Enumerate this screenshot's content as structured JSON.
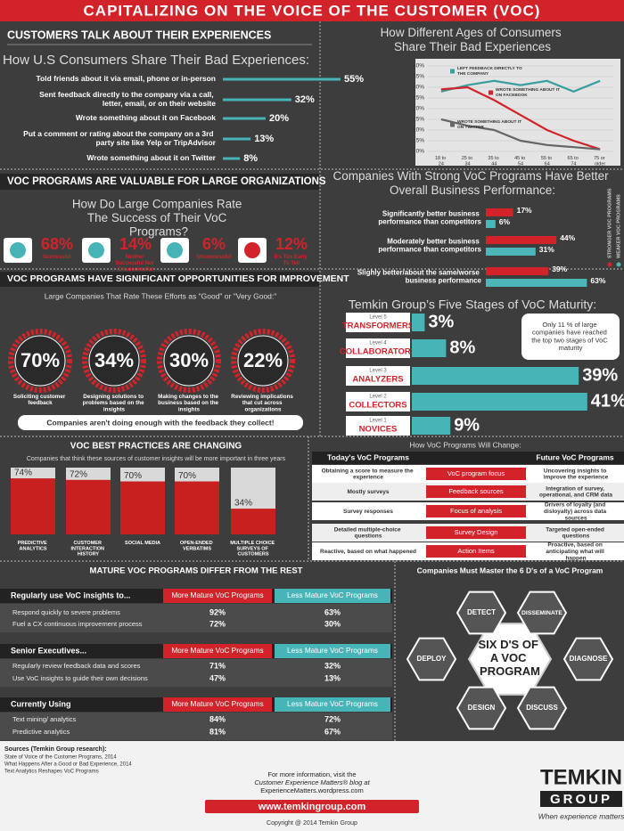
{
  "title": "CAPITALIZING ON THE VOICE OF THE CUSTOMER (VOC)",
  "chart_data": [
    {
      "type": "hbar",
      "heading": "CUSTOMERS TALK ABOUT THEIR EXPERIENCES",
      "title": "How U.S Consumers Share Their Bad Experiences:",
      "categories": [
        "Told friends about it via email, phone or in-person",
        "Sent feedback directly to the company via a call, letter, email, or on their website",
        "Wrote something about it on Facebook",
        "Put a comment or rating about the company on a 3rd party site like Yelp or TripAdvisor",
        "Wrote something about it on Twitter"
      ],
      "values": [
        55,
        32,
        20,
        13,
        8
      ],
      "value_labels": [
        "55%",
        "32%",
        "20%",
        "13%",
        "8%"
      ],
      "color": "#47b4b8"
    },
    {
      "type": "line",
      "title": "How Different Ages of Consumers Share Their Bad Experiences",
      "categories": [
        "18 to 24",
        "25 to 34",
        "35 to 44",
        "45 to 54",
        "55 to 64",
        "65 to 74",
        "75 or older"
      ],
      "series": [
        {
          "name": "LEFT FEEDBACK DIRECTLY TO THE COMPANY",
          "color": "#3a9ea0",
          "values": [
            28,
            31,
            33,
            31,
            33,
            28,
            33
          ]
        },
        {
          "name": "WROTE SOMETHING ABOUT IT ON FACEBOOK",
          "color": "#d2232a",
          "values": [
            29,
            30,
            24,
            17,
            10,
            5,
            1
          ]
        },
        {
          "name": "WROTE SOMETHING ABOUT IT ON TWITTER",
          "color": "#666666",
          "values": [
            15,
            12,
            10,
            5,
            3,
            2,
            1
          ]
        }
      ],
      "ylim": [
        0,
        40
      ],
      "yticks": [
        {
          "value": 0,
          "label": "0%"
        },
        {
          "value": 5,
          "label": "5%"
        },
        {
          "value": 10,
          "label": "10%"
        },
        {
          "value": 15,
          "label": "15%"
        },
        {
          "value": 20,
          "label": "20%"
        },
        {
          "value": 25,
          "label": "25%"
        },
        {
          "value": 30,
          "label": "30%"
        },
        {
          "value": 35,
          "label": "35%"
        },
        {
          "value": 40,
          "label": "40%"
        }
      ],
      "grid": true
    },
    {
      "type": "grouped-hbar",
      "title": "Companies With Strong VoC Programs Have Better Overall Business Performance:",
      "categories": [
        "Significantly better business performance than competitors",
        "Moderately better business performance than competitors",
        "Slighly better/about the same/worse business performance"
      ],
      "series": [
        {
          "name": "STRONGER VOC PROGRAMS",
          "color": "#d2232a",
          "values": [
            17,
            44,
            39
          ],
          "value_labels": [
            "17%",
            "44%",
            "39%"
          ]
        },
        {
          "name": "WEAKER VOC PROGRAMS",
          "color": "#4db6b8",
          "values": [
            6,
            31,
            63
          ],
          "value_labels": [
            "6%",
            "31%",
            "63%"
          ]
        }
      ]
    },
    {
      "type": "hbar",
      "title": "Temkin Group’s Five Stages of VoC Maturity:",
      "levels": [
        "Level 5",
        "Level 4",
        "Level 3",
        "Level 2",
        "Level 1"
      ],
      "categories": [
        "TRANSFORMERS",
        "COLLABORATORS",
        "ANALYZERS",
        "COLLECTORS",
        "NOVICES"
      ],
      "values": [
        3,
        8,
        39,
        41,
        9
      ],
      "value_labels": [
        "3%",
        "8%",
        "39%",
        "41%",
        "9%"
      ],
      "color": "#47b4b8",
      "annotation": "Only 11 % of large companies have reached the top two stages of VoC maturity"
    },
    {
      "type": "bar",
      "heading": "VOC  BEST PRACTICES ARE CHANGING",
      "title": "Companies that think these sources of customer insights will be more important in three years",
      "categories": [
        "PREDICTIVE ANALYTICS",
        "CUSTOMER INTERACTION HISTORY",
        "SOCIAL MEDIA",
        "OPEN-ENDED VERBATIMS",
        "MULTIPLE CHOICE SURVEYS OF CUSTOMERS"
      ],
      "values": [
        74,
        72,
        70,
        70,
        34
      ],
      "value_labels": [
        "74%",
        "72%",
        "70%",
        "70%",
        "34%"
      ],
      "color": "#c8201f"
    }
  ],
  "success": {
    "heading": "VOC PROGRAMS ARE VALUABLE FOR LARGE ORGANIZATIONS",
    "title": "How Do Large Companies Rate The Success of Their VoC Programs?",
    "items": [
      {
        "value": "68%",
        "label": "Successful"
      },
      {
        "value": "14%",
        "label": "Neither Successful Nor Unsuccessful"
      },
      {
        "value": "6%",
        "label": "Unsuccessful"
      },
      {
        "value": "12%",
        "label": "It's Too Early To Tell"
      }
    ]
  },
  "improvement": {
    "heading": "VOC  PROGRAMS HAVE SIGNIFICANT OPPORTUNITIES FOR IMPROVEMENT",
    "subtitle": "Large Companies That Rate These Efforts as \"Good\" or \"Very Good:\"",
    "items": [
      {
        "value": "70%",
        "label": "Soliciting customer feedback"
      },
      {
        "value": "34%",
        "label": "Designing solutions to problems based on the insights"
      },
      {
        "value": "30%",
        "label": "Making changes to the business based on the insights"
      },
      {
        "value": "22%",
        "label": "Reviewing implications that cut across organizations"
      }
    ],
    "banner": "Companies aren't doing enough with the feedback they collect!"
  },
  "changes": {
    "title": "How VoC Programs Will Change:",
    "headers": [
      "Today's  VoC  Programs",
      "Future VoC Programs"
    ],
    "rows": [
      [
        "Obtaining a score to measure the experience",
        "VoC program focus",
        "Uncovering insights to improve the experience"
      ],
      [
        "Mostly surveys",
        "Feedback sources",
        "Integration of survey, operational, and CRM data"
      ],
      [
        "Survey responses",
        "Focus of analysis",
        "Drivers of loyalty (and disloyalty) across data sources"
      ],
      [
        "Detailed multiple-choice questions",
        "Survey Design",
        "Targeted open-ended questions"
      ],
      [
        "Reactive, based on what happened",
        "Action Items",
        "Proactive, based on anticipating what will happen"
      ]
    ]
  },
  "mature": {
    "heading": "MATURE VOC  PROGRAMS DIFFER FROM THE REST",
    "tables": [
      {
        "header": [
          "Regularly use VoC insights to...",
          "More Mature VoC Programs",
          "Less Mature VoC Programs"
        ],
        "rows": [
          [
            "Respond quickly to severe problems",
            "92%",
            "63%"
          ],
          [
            "Fuel a CX continuous improvement process",
            "72%",
            "30%"
          ]
        ]
      },
      {
        "header": [
          "Senior Executives...",
          "More Mature VoC Programs",
          "Less Mature VoC Programs"
        ],
        "rows": [
          [
            "Regularly review feedback data and scores",
            "71%",
            "32%"
          ],
          [
            "Use VoC insights to guide their own decisions",
            "47%",
            "13%"
          ]
        ]
      },
      {
        "header": [
          "Currently Using",
          "More Mature VoC Programs",
          "Less Mature VoC Programs"
        ],
        "rows": [
          [
            "Text mining/ analytics",
            "84%",
            "72%"
          ],
          [
            "Predictive analytics",
            "81%",
            "67%"
          ]
        ]
      }
    ]
  },
  "six_ds": {
    "title": "Companies Must Master the 6 D's of a VoC  Program",
    "center": "SIX D'S OF A VOC PROGRAM",
    "steps": [
      "DETECT",
      "DISSEMINATE",
      "DIAGNOSE",
      "DISCUSS",
      "DESIGN",
      "DEPLOY"
    ]
  },
  "footer": {
    "sources_title": "Sources (Temkin Group research):",
    "sources": [
      "State of Voice of the Customer Programs, 2014",
      "What Happens After a Good or Bad Experience, 2014",
      "Text Analytics Reshapes VoC Programs"
    ],
    "info": [
      "For more information, visit the",
      "Customer Experience Matters® blog at",
      "ExperienceMatters.wordpress.com"
    ],
    "url": "www.temkingroup.com",
    "copyright": "Copyright @ 2014 Temkin Group",
    "logo": [
      "TEMKIN",
      "GROUP"
    ],
    "tagline": "When experience matters"
  }
}
